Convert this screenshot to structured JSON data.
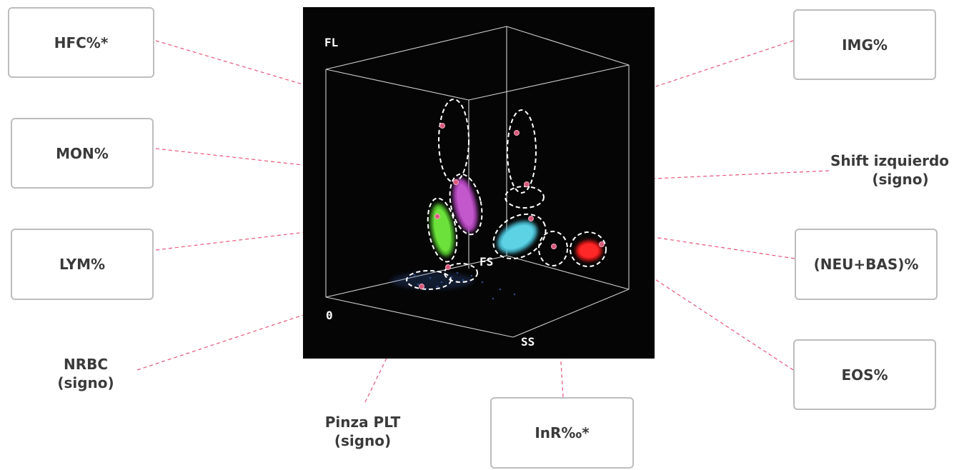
{
  "colors": {
    "plot_bg": "#050505",
    "cube_lines": "#cfcfcf",
    "connector": "#e5567a",
    "marker": "#d75a7c",
    "lym_cluster": "#5bd130",
    "mon_cluster": "#b94ac4",
    "neu_cluster": "#4ec6dc",
    "eos_cluster": "#ff1e1e",
    "nrbc_cluster": "#3a5fb0",
    "box_border": "#bdbdbd",
    "label_text": "#3a3a3a"
  },
  "axes": {
    "fl": "FL",
    "fs": "FS",
    "ss": "SS",
    "origin": "0"
  },
  "labels": {
    "hfc": "HFC%*",
    "mon": "MON%",
    "lym": "LYM%",
    "nrbc": [
      "NRBC",
      "(signo)"
    ],
    "plt": [
      "Pinza PLT",
      "(signo)"
    ],
    "inr": "InR‰*",
    "img": "IMG%",
    "shift": [
      "Shift izquierdo",
      "(signo)"
    ],
    "neubas": "(NEU+BAS)%",
    "eos": "EOS%"
  }
}
